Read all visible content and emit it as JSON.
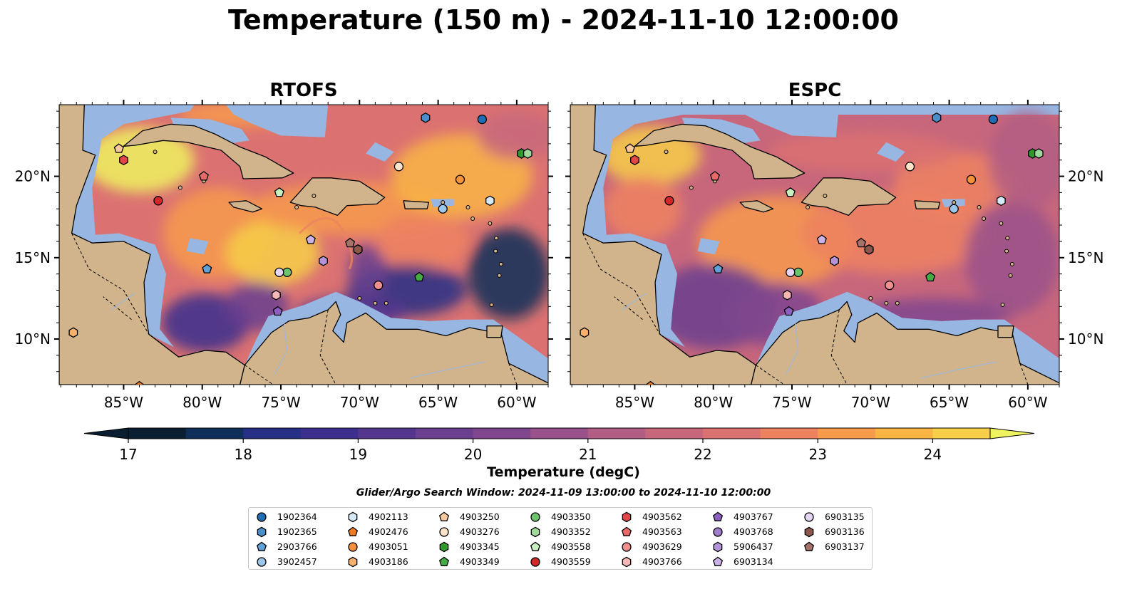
{
  "title": "Temperature (150 m) - 2024-11-10 12:00:00",
  "panels": [
    {
      "title": "RTOFS"
    },
    {
      "title": "ESPC"
    }
  ],
  "lon_ticks": [
    "85°W",
    "80°W",
    "75°W",
    "70°W",
    "65°W",
    "60°W"
  ],
  "lat_ticks": [
    "20°N",
    "15°N",
    "10°N"
  ],
  "colorbar": {
    "title": "Temperature (degC)",
    "ticks": [
      "17",
      "18",
      "19",
      "20",
      "21",
      "22",
      "23",
      "24"
    ],
    "range": [
      17,
      24.5
    ],
    "colors": [
      "#0a1e32",
      "#0f2f5a",
      "#252f85",
      "#3b2e8e",
      "#55368f",
      "#6a3f8f",
      "#7f468e",
      "#99518b",
      "#b25d84",
      "#c8677c",
      "#db7271",
      "#ee8260",
      "#f79a4c",
      "#f9b444",
      "#f7cf49",
      "#eef35f"
    ]
  },
  "search_window": "Glider/Argo Search Window: 2024-11-09 13:00:00 to 2024-11-10 12:00:00",
  "legend": [
    {
      "id": "1902364",
      "color": "#1f6db5",
      "shape": "circle"
    },
    {
      "id": "1902365",
      "color": "#4a8fcc",
      "shape": "hexagon"
    },
    {
      "id": "2903766",
      "color": "#5fa2d9",
      "shape": "pentagon"
    },
    {
      "id": "3902457",
      "color": "#9cc6ea",
      "shape": "circle"
    },
    {
      "id": "4902113",
      "color": "#d5e9f7",
      "shape": "hexagon"
    },
    {
      "id": "4902476",
      "color": "#f07a1e",
      "shape": "pentagon"
    },
    {
      "id": "4903051",
      "color": "#f5913a",
      "shape": "circle"
    },
    {
      "id": "4903186",
      "color": "#f9b06b",
      "shape": "hexagon"
    },
    {
      "id": "4903250",
      "color": "#fbc99b",
      "shape": "pentagon"
    },
    {
      "id": "4903276",
      "color": "#fde3c9",
      "shape": "circle"
    },
    {
      "id": "4903345",
      "color": "#2e9a2e",
      "shape": "hexagon"
    },
    {
      "id": "4903349",
      "color": "#45ab45",
      "shape": "pentagon"
    },
    {
      "id": "4903350",
      "color": "#6cc46c",
      "shape": "circle"
    },
    {
      "id": "4903352",
      "color": "#9ed89a",
      "shape": "hexagon"
    },
    {
      "id": "4903558",
      "color": "#c8efbf",
      "shape": "pentagon"
    },
    {
      "id": "4903559",
      "color": "#d62728",
      "shape": "circle"
    },
    {
      "id": "4903562",
      "color": "#e24545",
      "shape": "hexagon"
    },
    {
      "id": "4903563",
      "color": "#ea6a6a",
      "shape": "pentagon"
    },
    {
      "id": "4903629",
      "color": "#f28f8f",
      "shape": "circle"
    },
    {
      "id": "4903766",
      "color": "#f8b7b7",
      "shape": "hexagon"
    },
    {
      "id": "4903767",
      "color": "#8c5fc0",
      "shape": "pentagon"
    },
    {
      "id": "4903768",
      "color": "#a07ccd",
      "shape": "circle"
    },
    {
      "id": "5906437",
      "color": "#b593da",
      "shape": "hexagon"
    },
    {
      "id": "6903134",
      "color": "#cbb1e6",
      "shape": "pentagon"
    },
    {
      "id": "6903135",
      "color": "#e5d6f3",
      "shape": "circle"
    },
    {
      "id": "6903136",
      "color": "#8c564b",
      "shape": "hexagon"
    },
    {
      "id": "6903137",
      "color": "#a5736a",
      "shape": "pentagon"
    }
  ],
  "map_style": {
    "land": "#d2b48c",
    "shelf": "#97b6e1",
    "deep_cold": "#0a1e32",
    "coast": "#000000"
  },
  "markers": [
    {
      "id": "1902364",
      "lon": -62.2,
      "lat": 23.5
    },
    {
      "id": "1902365",
      "lon": -65.8,
      "lat": 23.6
    },
    {
      "id": "2903766",
      "lon": -79.7,
      "lat": 14.3
    },
    {
      "id": "3902457",
      "lon": -64.7,
      "lat": 18.0
    },
    {
      "id": "4902113",
      "lon": -61.7,
      "lat": 18.5
    },
    {
      "id": "4902476",
      "lon": -84.0,
      "lat": 7.1
    },
    {
      "id": "4903051",
      "lon": -63.6,
      "lat": 19.8
    },
    {
      "id": "4903186",
      "lon": -88.2,
      "lat": 10.4
    },
    {
      "id": "4903250",
      "lon": -85.3,
      "lat": 21.7
    },
    {
      "id": "4903276",
      "lon": -67.5,
      "lat": 20.6
    },
    {
      "id": "4903345",
      "lon": -59.7,
      "lat": 21.4
    },
    {
      "id": "4903349",
      "lon": -66.2,
      "lat": 13.8
    },
    {
      "id": "4903350",
      "lon": -74.6,
      "lat": 14.1
    },
    {
      "id": "4903352",
      "lon": -59.3,
      "lat": 21.4
    },
    {
      "id": "4903558",
      "lon": -75.1,
      "lat": 19.0
    },
    {
      "id": "4903559",
      "lon": -82.8,
      "lat": 18.5
    },
    {
      "id": "4903562",
      "lon": -85.0,
      "lat": 21.0
    },
    {
      "id": "4903563",
      "lon": -79.9,
      "lat": 20.0
    },
    {
      "id": "4903629",
      "lon": -68.8,
      "lat": 13.3
    },
    {
      "id": "4903766",
      "lon": -75.3,
      "lat": 12.7
    },
    {
      "id": "4903767",
      "lon": -75.2,
      "lat": 11.7
    },
    {
      "id": "4903768",
      "lon": -70.1,
      "lat": 15.5
    },
    {
      "id": "5906437",
      "lon": -72.3,
      "lat": 14.8
    },
    {
      "id": "6903134",
      "lon": -73.1,
      "lat": 16.1
    },
    {
      "id": "6903135",
      "lon": -75.1,
      "lat": 14.1
    },
    {
      "id": "6903136",
      "lon": -70.1,
      "lat": 15.5
    },
    {
      "id": "6903137",
      "lon": -70.6,
      "lat": 15.9
    }
  ]
}
